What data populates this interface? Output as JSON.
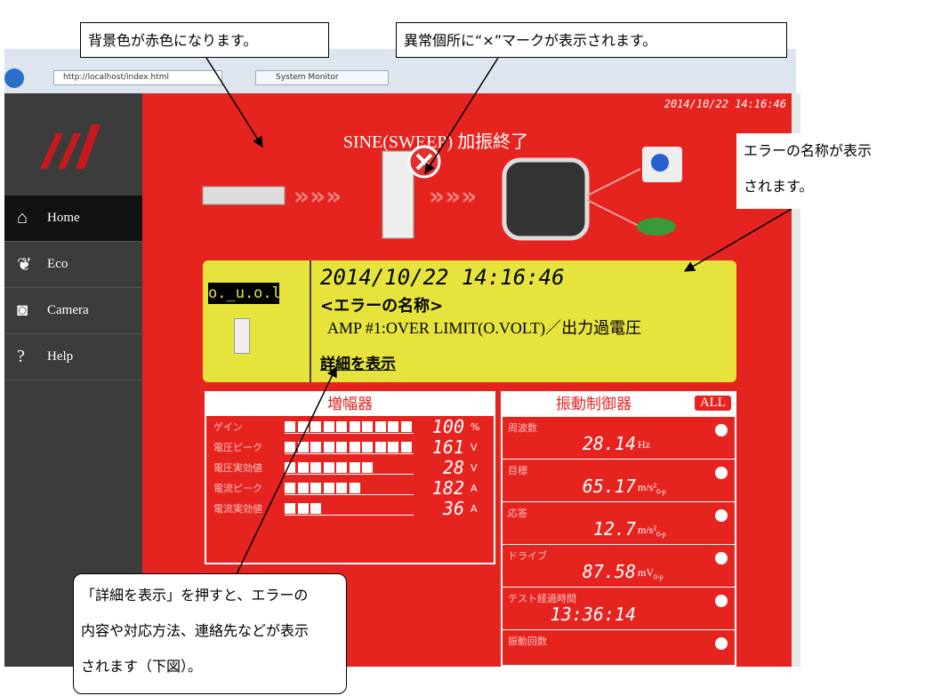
{
  "browser": {
    "url": "http://localhost/index.html",
    "tab": "System Monitor"
  },
  "sidebar": {
    "items": [
      "Home",
      "Eco",
      "Camera",
      "Help"
    ]
  },
  "header": {
    "timestamp": "2014/10/22 14:16:46",
    "title": "SINE(SWEEP) 加振終了"
  },
  "error_panel": {
    "code": "o._u.o.l.t.",
    "timestamp": "2014/10/22 14:16:46",
    "name_label": "<エラーの名称>",
    "message": "AMP #1:OVER LIMIT(O.VOLT)／出力過電圧",
    "link": "詳細を表示"
  },
  "amplifier": {
    "title": "増幅器",
    "rows": [
      {
        "label": "ゲイン",
        "value": "100",
        "unit": "%"
      },
      {
        "label": "電圧ピーク",
        "value": "161",
        "unit": "V"
      },
      {
        "label": "電圧実効値",
        "value": "28",
        "unit": "V"
      },
      {
        "label": "電流ピーク",
        "value": "182",
        "unit": "A"
      },
      {
        "label": "電流実効値",
        "value": "36",
        "unit": "A"
      }
    ]
  },
  "controller": {
    "title": "振動制御器",
    "badge": "ALL",
    "rows": [
      {
        "label": "周波数",
        "value": "28.14",
        "unit": "Hz"
      },
      {
        "label": "目標",
        "value": "65.17",
        "unit": "m/s²",
        "sub": "0-p"
      },
      {
        "label": "応答",
        "value": "12.7",
        "unit": "m/s²",
        "sub": "0-p"
      },
      {
        "label": "ドライブ",
        "value": "87.58",
        "unit": "mV",
        "sub": "0-p"
      },
      {
        "label": "テスト経過時間",
        "value": "13:36:14"
      },
      {
        "label": "振動回数"
      }
    ]
  },
  "callouts": [
    {
      "lines": [
        "背景色が赤色になります。"
      ]
    },
    {
      "lines": [
        "異常個所に“×”マークが表示されます。"
      ]
    },
    {
      "lines": [
        "エラーの名称が表示",
        "されます。"
      ]
    },
    {
      "lines": [
        "「詳細を表示」を押すと、エラーの",
        "内容や対応方法、連絡先などが表示",
        "されます（下図）。"
      ]
    }
  ]
}
